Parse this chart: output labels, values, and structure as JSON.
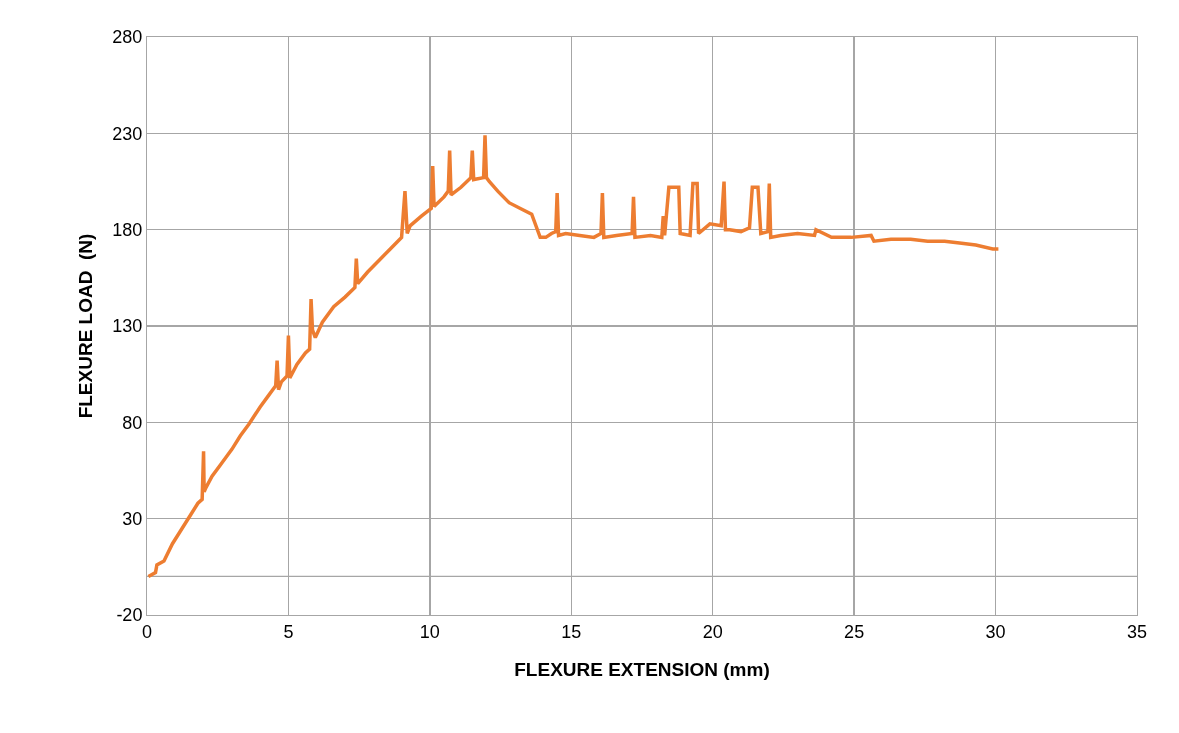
{
  "chart_data": {
    "type": "line",
    "xlabel": "FLEXURE EXTENSION (mm)",
    "ylabel": "FLEXURE LOAD  (N)",
    "xlim": [
      0,
      35
    ],
    "xticks": [
      0,
      5,
      10,
      15,
      20,
      25,
      30,
      35
    ],
    "ylim": [
      -20,
      280
    ],
    "yticks": [
      -20,
      30,
      80,
      130,
      180,
      230,
      280
    ],
    "grid": true,
    "marker": "none",
    "line_style": "solid",
    "ref_lines": [
      {
        "axis": "y",
        "value": 0,
        "color": "#a6a6a6"
      }
    ],
    "series": [
      {
        "color": "#ed7d31",
        "x": [
          0.05,
          0.3,
          0.35,
          0.6,
          0.9,
          1.2,
          1.5,
          1.8,
          1.95,
          2.0,
          2.02,
          2.08,
          2.3,
          2.6,
          2.8,
          3.0,
          3.3,
          3.6,
          4.0,
          4.3,
          4.55,
          4.6,
          4.65,
          4.75,
          4.95,
          5.0,
          5.05,
          5.3,
          5.6,
          5.75,
          5.8,
          5.85,
          5.95,
          6.2,
          6.6,
          7.0,
          7.35,
          7.4,
          7.45,
          7.8,
          8.2,
          8.6,
          9.0,
          9.12,
          9.2,
          9.3,
          9.7,
          10.05,
          10.1,
          10.15,
          10.5,
          10.65,
          10.7,
          10.75,
          11.1,
          11.45,
          11.5,
          11.55,
          11.9,
          11.95,
          12.0,
          12.1,
          12.4,
          12.8,
          13.2,
          13.6,
          13.9,
          14.1,
          14.3,
          14.45,
          14.5,
          14.55,
          14.8,
          15.3,
          15.8,
          16.05,
          16.1,
          16.15,
          16.6,
          17.15,
          17.2,
          17.25,
          17.8,
          18.2,
          18.25,
          18.3,
          18.45,
          18.5,
          18.8,
          18.85,
          19.2,
          19.3,
          19.45,
          19.5,
          19.9,
          20.3,
          20.4,
          20.45,
          20.6,
          21.0,
          21.3,
          21.4,
          21.6,
          21.7,
          21.95,
          22.0,
          22.05,
          22.4,
          23.0,
          23.6,
          23.65,
          24.2,
          24.9,
          25.6,
          25.7,
          26.3,
          27.0,
          27.6,
          28.2,
          28.8,
          29.3,
          29.9,
          30.1
        ],
        "values": [
          0,
          2,
          6,
          8,
          17,
          24,
          31,
          38,
          40,
          65,
          44,
          46,
          52,
          58,
          62,
          66,
          73,
          79,
          88,
          94,
          99,
          112,
          97,
          101,
          104,
          125,
          103,
          110,
          116,
          118,
          144,
          128,
          124,
          132,
          140,
          145,
          150,
          165,
          152,
          158,
          164,
          170,
          176,
          200,
          178,
          182,
          187,
          191,
          213,
          192,
          197,
          200,
          221,
          198,
          202,
          207,
          221,
          206,
          207,
          229,
          207,
          205,
          200,
          194,
          191,
          188,
          176,
          176,
          178,
          179,
          199,
          177,
          178,
          177,
          176,
          178,
          199,
          176,
          177,
          178,
          197,
          176,
          177,
          176,
          187,
          177,
          202,
          202,
          202,
          178,
          177,
          204,
          204,
          178,
          183,
          182,
          205,
          180,
          180,
          179,
          181,
          202,
          202,
          178,
          179,
          204,
          176,
          177,
          178,
          177,
          180,
          176,
          176,
          177,
          174,
          175,
          175,
          174,
          174,
          173,
          172,
          170,
          170
        ]
      }
    ]
  }
}
